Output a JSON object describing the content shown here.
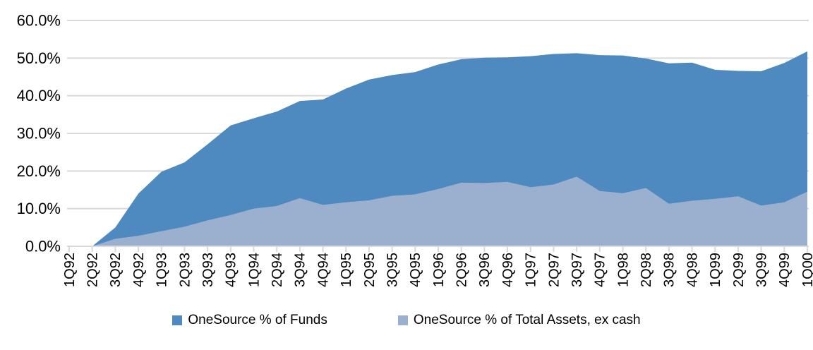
{
  "chart_data": {
    "type": "area",
    "mode": "overlapping",
    "categories": [
      "1Q92",
      "2Q92",
      "3Q92",
      "4Q92",
      "1Q93",
      "2Q93",
      "3Q93",
      "4Q93",
      "1Q94",
      "2Q94",
      "3Q94",
      "4Q94",
      "1Q95",
      "2Q95",
      "3Q95",
      "4Q95",
      "1Q96",
      "2Q96",
      "3Q96",
      "4Q96",
      "1Q97",
      "2Q97",
      "3Q97",
      "4Q97",
      "1Q98",
      "2Q98",
      "3Q98",
      "4Q98",
      "1Q99",
      "2Q99",
      "3Q99",
      "4Q99",
      "1Q00"
    ],
    "series": [
      {
        "id": "funds",
        "name": "OneSource % of Funds",
        "color": "#4E89C0",
        "values": [
          0.0,
          0.0,
          5.0,
          14.0,
          19.8,
          22.3,
          27.1,
          32.1,
          34.0,
          35.8,
          38.6,
          39.0,
          41.9,
          44.3,
          45.5,
          46.3,
          48.3,
          49.7,
          50.1,
          50.2,
          50.5,
          51.1,
          51.3,
          50.8,
          50.7,
          49.9,
          48.6,
          48.8,
          46.9,
          46.6,
          46.5,
          48.7,
          51.8
        ]
      },
      {
        "id": "assets-ex-cash",
        "name": "OneSource % of Total Assets, ex cash",
        "color": "#9BB0CE",
        "values": [
          0.0,
          0.0,
          2.0,
          2.8,
          4.0,
          5.2,
          6.9,
          8.3,
          10.0,
          10.7,
          12.8,
          11.0,
          11.7,
          12.2,
          13.4,
          13.8,
          15.2,
          16.9,
          16.8,
          17.1,
          15.7,
          16.4,
          18.5,
          14.7,
          14.1,
          15.5,
          11.3,
          12.1,
          12.6,
          13.3,
          10.8,
          11.7,
          14.5
        ]
      }
    ],
    "title": "",
    "xlabel": "",
    "ylabel": "",
    "ylim": [
      0,
      60
    ],
    "y_tick_values": [
      0,
      10,
      20,
      30,
      40,
      50,
      60
    ],
    "y_tick_labels": [
      "0.0%",
      "10.0%",
      "20.0%",
      "30.0%",
      "40.0%",
      "50.0%",
      "60.0%"
    ],
    "grid": true,
    "gridline_color": "#D9D9D9",
    "legend_position": "bottom"
  }
}
